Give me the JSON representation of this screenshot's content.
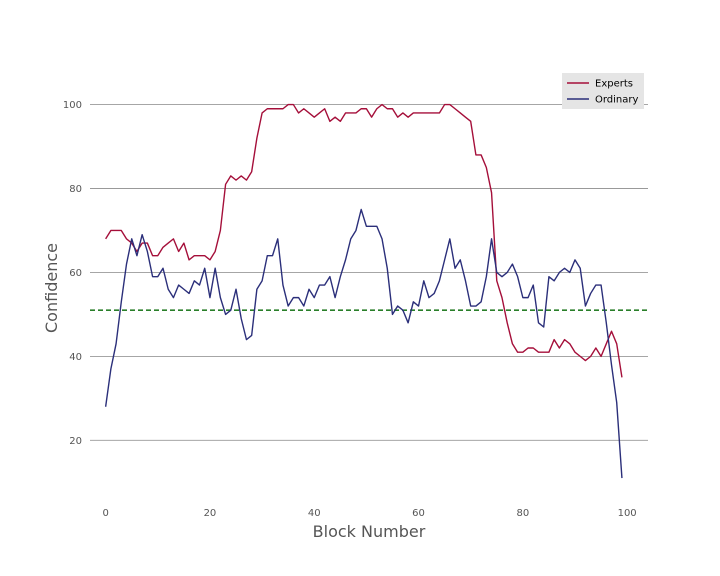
{
  "chart_data": {
    "type": "line",
    "title": "",
    "xlabel": "Block Number",
    "ylabel": "Confidence",
    "xlim": [
      -3,
      104
    ],
    "ylim": [
      6.5,
      113
    ],
    "x_ticks": [
      0,
      20,
      40,
      60,
      80,
      100
    ],
    "y_ticks": [
      20,
      40,
      60,
      80,
      100
    ],
    "grid": "horizontal",
    "legend_position": "top-right",
    "reference_line": {
      "y": 51,
      "style": "dashed",
      "color": "#2a7f2a"
    },
    "x": [
      0,
      1,
      2,
      3,
      4,
      5,
      6,
      7,
      8,
      9,
      10,
      11,
      12,
      13,
      14,
      15,
      16,
      17,
      18,
      19,
      20,
      21,
      22,
      23,
      24,
      25,
      26,
      27,
      28,
      29,
      30,
      31,
      32,
      33,
      34,
      35,
      36,
      37,
      38,
      39,
      40,
      41,
      42,
      43,
      44,
      45,
      46,
      47,
      48,
      49,
      50,
      51,
      52,
      53,
      54,
      55,
      56,
      57,
      58,
      59,
      60,
      61,
      62,
      63,
      64,
      65,
      66,
      67,
      68,
      69,
      70,
      71,
      72,
      73,
      74,
      75,
      76,
      77,
      78,
      79,
      80,
      81,
      82,
      83,
      84,
      85,
      86,
      87,
      88,
      89,
      90,
      91,
      92,
      93,
      94,
      95,
      96,
      97,
      98,
      99
    ],
    "series": [
      {
        "name": "Experts",
        "color": "#a50f3a",
        "values": [
          68,
          70,
          70,
          70,
          68,
          67,
          65,
          67,
          67,
          64,
          64,
          66,
          67,
          68,
          65,
          67,
          63,
          64,
          64,
          64,
          63,
          65,
          70,
          81,
          83,
          82,
          83,
          82,
          84,
          92,
          98,
          99,
          99,
          99,
          99,
          100,
          100,
          98,
          99,
          98,
          97,
          98,
          99,
          96,
          97,
          96,
          98,
          98,
          98,
          99,
          99,
          97,
          99,
          100,
          99,
          99,
          97,
          98,
          97,
          98,
          98,
          98,
          98,
          98,
          98,
          100,
          100,
          99,
          98,
          97,
          96,
          88,
          88,
          85,
          79,
          58,
          54,
          48,
          43,
          41,
          41,
          42,
          42,
          41,
          41,
          41,
          44,
          42,
          44,
          43,
          41,
          40,
          39,
          40,
          42,
          40,
          43,
          46,
          43,
          35
        ]
      },
      {
        "name": "Ordinary",
        "color": "#2b2f7a",
        "values": [
          28,
          37,
          43,
          53,
          62,
          68,
          64,
          69,
          65,
          59,
          59,
          61,
          56,
          54,
          57,
          56,
          55,
          58,
          57,
          61,
          54,
          61,
          54,
          50,
          51,
          56,
          49,
          44,
          45,
          56,
          58,
          64,
          64,
          68,
          57,
          52,
          54,
          54,
          52,
          56,
          54,
          57,
          57,
          59,
          54,
          59,
          63,
          68,
          70,
          75,
          71,
          71,
          71,
          68,
          61,
          50,
          52,
          51,
          48,
          53,
          52,
          58,
          54,
          55,
          58,
          63,
          68,
          61,
          63,
          58,
          52,
          52,
          53,
          59,
          68,
          60,
          59,
          60,
          62,
          59,
          54,
          54,
          57,
          48,
          47,
          59,
          58,
          60,
          61,
          60,
          63,
          61,
          52,
          55,
          57,
          57,
          48,
          38,
          29,
          11
        ]
      }
    ]
  }
}
